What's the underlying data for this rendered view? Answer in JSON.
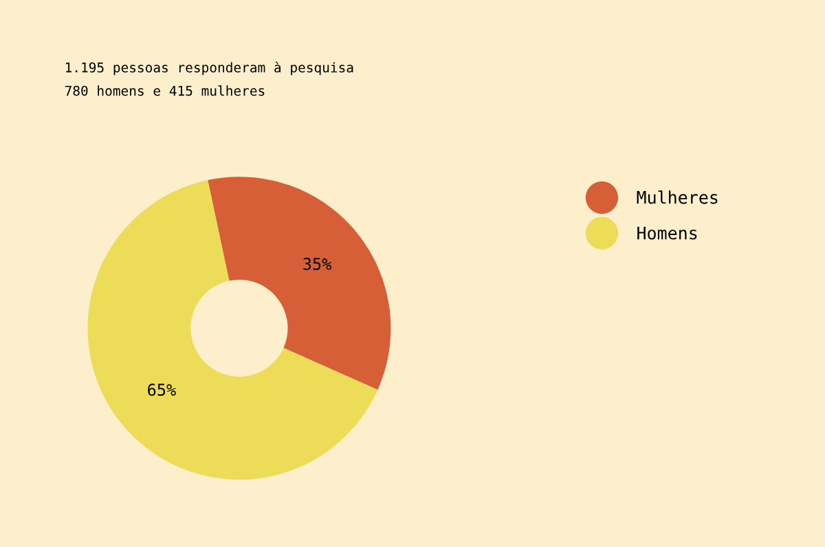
{
  "chart_data": {
    "type": "donut",
    "title": "1.195 pessoas responderam à pesquisa",
    "subtitle": "780 homens e 415 mulheres",
    "categories": [
      "Mulheres",
      "Homens"
    ],
    "values": [
      35,
      65
    ],
    "colors": [
      "#d65f37",
      "#ecdc58"
    ],
    "value_labels": [
      "35%",
      "65%"
    ],
    "legend": "right"
  }
}
